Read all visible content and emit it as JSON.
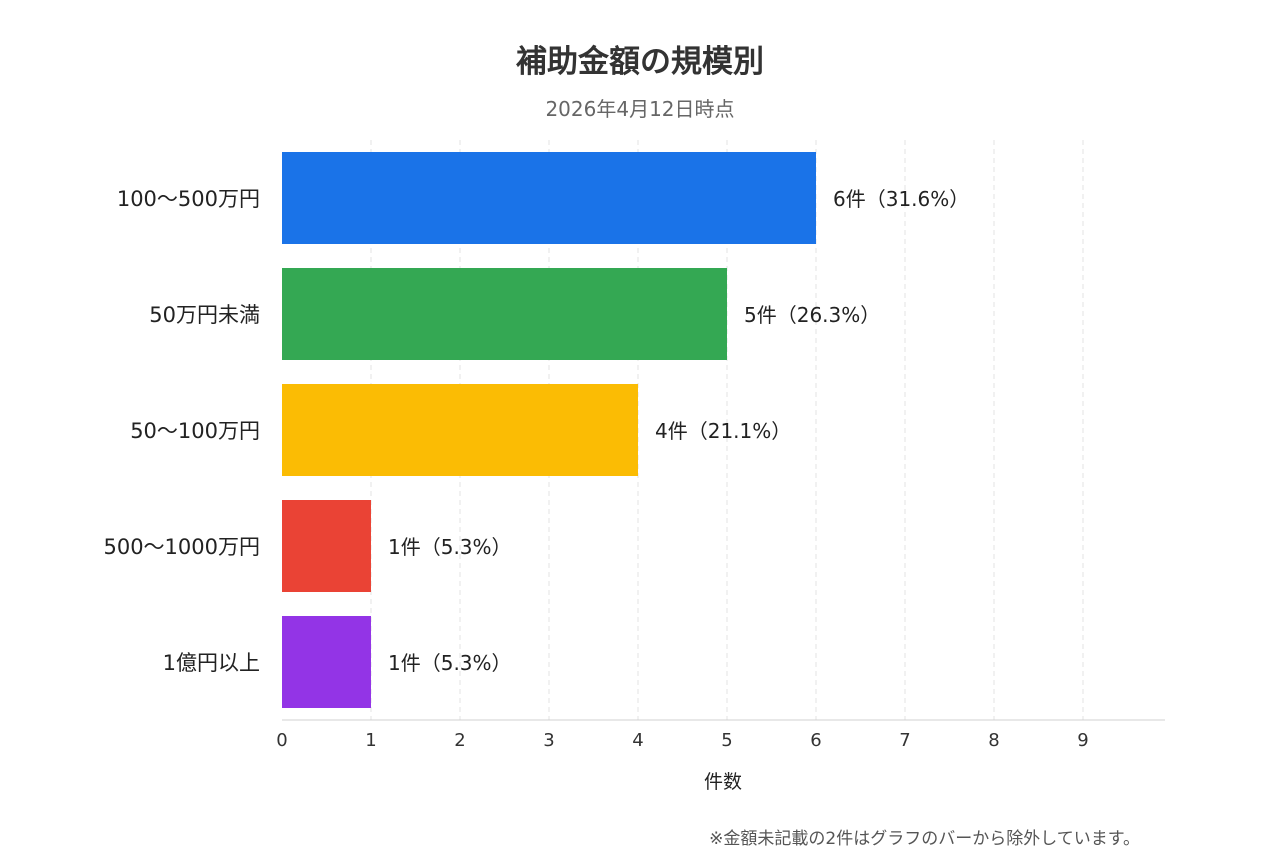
{
  "chart_data": {
    "type": "bar",
    "orientation": "horizontal",
    "title": "補助金額の規模別",
    "subtitle": "2026年4月12日時点",
    "xlabel": "件数",
    "ylabel": "",
    "xlim": [
      0,
      9.9
    ],
    "xticks": [
      0,
      1,
      2,
      3,
      4,
      5,
      6,
      7,
      8,
      9
    ],
    "grid": true,
    "categories": [
      "100〜500万円",
      "50万円未満",
      "50〜100万円",
      "500〜1000万円",
      "1億円以上"
    ],
    "values": [
      6,
      5,
      4,
      1,
      1
    ],
    "data_labels": [
      "6件（31.6%）",
      "5件（26.3%）",
      "4件（21.1%）",
      "1件（5.3%）",
      "1件（5.3%）"
    ],
    "colors": [
      "#1a73e8",
      "#34a853",
      "#fbbc04",
      "#ea4335",
      "#9334e6"
    ]
  },
  "footnote": "※金額未記載の2件はグラフのバーから除外しています。"
}
